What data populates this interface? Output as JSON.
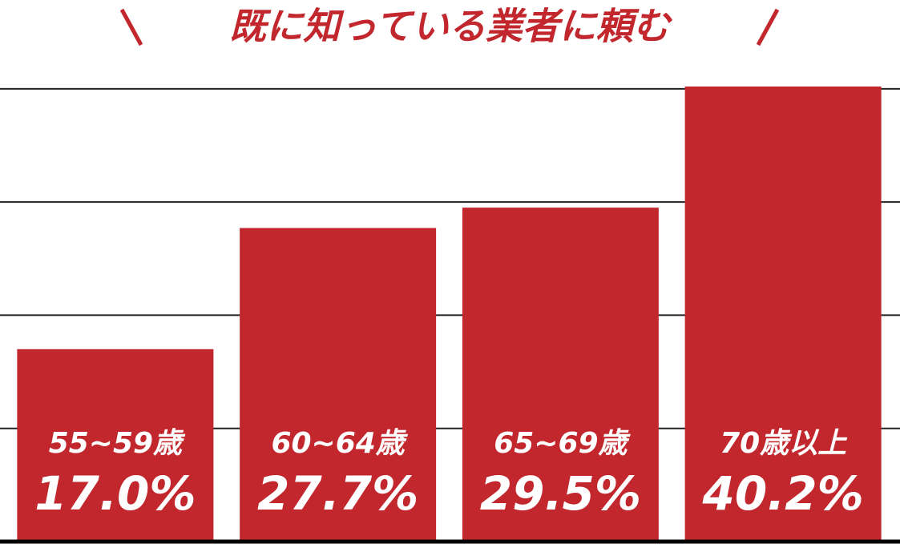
{
  "chart_data": {
    "type": "bar",
    "title": "既に知っている業者に頼む",
    "categories": [
      "55~59歳",
      "60~64歳",
      "65~69歳",
      "70歳以上"
    ],
    "values": [
      17.0,
      27.7,
      29.5,
      40.2
    ],
    "value_labels": [
      "17.0%",
      "27.7%",
      "29.5%",
      "40.2%"
    ],
    "color": "#c1272d",
    "ylim": [
      0,
      41
    ],
    "yticks": [
      10,
      20,
      30,
      40
    ],
    "grid": true
  }
}
